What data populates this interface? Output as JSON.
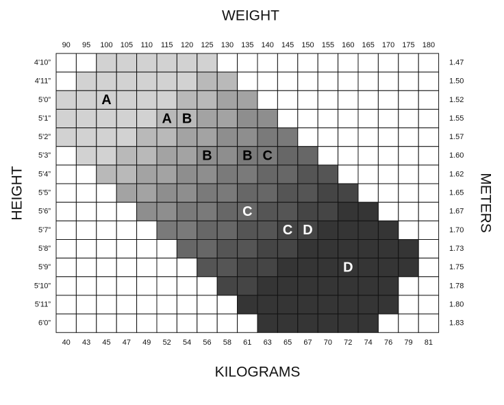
{
  "title_top": "WEIGHT",
  "title_bottom": "KILOGRAMS",
  "title_left": "HEIGHT",
  "title_right": "METERS",
  "weights_lb": [
    90,
    95,
    100,
    105,
    110,
    115,
    120,
    125,
    130,
    135,
    140,
    145,
    150,
    155,
    160,
    165,
    170,
    175,
    180
  ],
  "weights_kg": [
    40,
    43,
    45,
    47,
    49,
    52,
    54,
    56,
    58,
    61,
    63,
    65,
    67,
    70,
    72,
    74,
    76,
    79,
    81
  ],
  "heights": [
    "4'10”",
    "4'11”",
    "5'0”",
    "5'1”",
    "5'2”",
    "5'3”",
    "5'4”",
    "5'5”",
    "5'6”",
    "5'7”",
    "5'8”",
    "5'9”",
    "5'10”",
    "5'11”",
    "6'0”"
  ],
  "meters": [
    "1.47",
    "1.50",
    "1.52",
    "1.55",
    "1.57",
    "1.60",
    "1.62",
    "1.65",
    "1.67",
    "1.70",
    "1.73",
    "1.75",
    "1.78",
    "1.80",
    "1.83"
  ],
  "shades": [
    "#ffffff",
    "#d2d2d2",
    "#b9b9b9",
    "#a3a3a3",
    "#8e8e8e",
    "#7a7a7a",
    "#676767",
    "#555555",
    "#454545",
    "#353535"
  ],
  "cells": [
    [
      0,
      0,
      1,
      1,
      1,
      1,
      1,
      1,
      0,
      0,
      0,
      0,
      0,
      0,
      0,
      0,
      0,
      0,
      0
    ],
    [
      0,
      1,
      1,
      1,
      1,
      1,
      1,
      2,
      2,
      0,
      0,
      0,
      0,
      0,
      0,
      0,
      0,
      0,
      0
    ],
    [
      1,
      1,
      1,
      1,
      1,
      1,
      2,
      2,
      3,
      3,
      0,
      0,
      0,
      0,
      0,
      0,
      0,
      0,
      0
    ],
    [
      1,
      1,
      1,
      1,
      1,
      2,
      2,
      3,
      3,
      4,
      4,
      0,
      0,
      0,
      0,
      0,
      0,
      0,
      0
    ],
    [
      1,
      1,
      1,
      1,
      2,
      2,
      3,
      3,
      4,
      4,
      5,
      5,
      0,
      0,
      0,
      0,
      0,
      0,
      0
    ],
    [
      0,
      1,
      1,
      2,
      2,
      3,
      3,
      4,
      4,
      5,
      5,
      6,
      6,
      0,
      0,
      0,
      0,
      0,
      0
    ],
    [
      0,
      0,
      2,
      2,
      3,
      3,
      4,
      4,
      5,
      5,
      6,
      6,
      7,
      7,
      0,
      0,
      0,
      0,
      0
    ],
    [
      0,
      0,
      0,
      3,
      3,
      4,
      4,
      5,
      5,
      6,
      6,
      7,
      7,
      8,
      8,
      0,
      0,
      0,
      0
    ],
    [
      0,
      0,
      0,
      0,
      4,
      4,
      5,
      5,
      6,
      6,
      7,
      7,
      8,
      8,
      9,
      9,
      0,
      0,
      0
    ],
    [
      0,
      0,
      0,
      0,
      0,
      5,
      5,
      6,
      6,
      7,
      7,
      8,
      8,
      9,
      9,
      9,
      9,
      0,
      0
    ],
    [
      0,
      0,
      0,
      0,
      0,
      0,
      6,
      6,
      7,
      7,
      8,
      8,
      9,
      9,
      9,
      9,
      9,
      9,
      0
    ],
    [
      0,
      0,
      0,
      0,
      0,
      0,
      0,
      7,
      7,
      8,
      8,
      9,
      9,
      9,
      9,
      9,
      9,
      9,
      0
    ],
    [
      0,
      0,
      0,
      0,
      0,
      0,
      0,
      0,
      8,
      8,
      9,
      9,
      9,
      9,
      9,
      9,
      9,
      0,
      0
    ],
    [
      0,
      0,
      0,
      0,
      0,
      0,
      0,
      0,
      0,
      9,
      9,
      9,
      9,
      9,
      9,
      9,
      9,
      0,
      0
    ],
    [
      0,
      0,
      0,
      0,
      0,
      0,
      0,
      0,
      0,
      0,
      9,
      9,
      9,
      9,
      9,
      9,
      0,
      0,
      0
    ]
  ],
  "letters": [
    {
      "text": "A",
      "height": "5'0”",
      "weight": 100
    },
    {
      "text": "A",
      "height": "5'1”",
      "weight": 115
    },
    {
      "text": "B",
      "height": "5'1”",
      "weight": 120
    },
    {
      "text": "B",
      "height": "5'3”",
      "weight": 125
    },
    {
      "text": "B",
      "height": "5'3”",
      "weight": 135
    },
    {
      "text": "C",
      "height": "5'3”",
      "weight": 140
    },
    {
      "text": "C",
      "height": "5'6”",
      "weight": 135
    },
    {
      "text": "C",
      "height": "5'7”",
      "weight": 145
    },
    {
      "text": "D",
      "height": "5'7”",
      "weight": 150
    },
    {
      "text": "D",
      "height": "5'9”",
      "weight": 160
    }
  ]
}
